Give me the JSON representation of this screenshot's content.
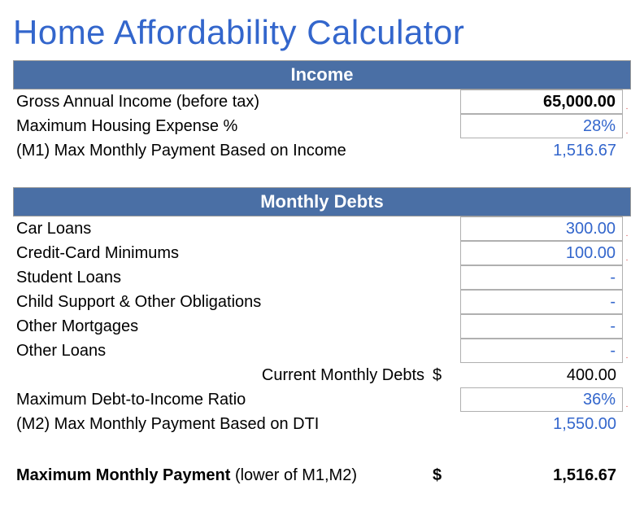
{
  "title": "Home Affordability Calculator",
  "colors": {
    "title": "#3366cc",
    "section_header_bg": "#4a6fa5",
    "section_header_text": "#ffffff",
    "calc_value": "#3366cc",
    "input_border": "#b0b0b0",
    "marker": "#cc3333"
  },
  "fonts": {
    "title_size": 42,
    "header_size": 22,
    "body_size": 20
  },
  "income": {
    "header": "Income",
    "gross_label": "Gross Annual Income (before tax)",
    "gross_value": "65,000.00",
    "max_housing_label": "Maximum Housing Expense %",
    "max_housing_value": "28%",
    "m1_label": "(M1) Max Monthly Payment Based on Income",
    "m1_value": "1,516.67"
  },
  "debts": {
    "header": "Monthly Debts",
    "items": [
      {
        "label": "Car Loans",
        "value": "300.00",
        "marker": true
      },
      {
        "label": "Credit-Card Minimums",
        "value": "100.00",
        "marker": true
      },
      {
        "label": "Student Loans",
        "value": "-",
        "marker": false
      },
      {
        "label": "Child Support & Other Obligations",
        "value": "-",
        "marker": false
      },
      {
        "label": "Other Mortgages",
        "value": "-",
        "marker": false
      },
      {
        "label": "Other Loans",
        "value": "-",
        "marker": true
      }
    ],
    "current_label": "Current Monthly Debts",
    "current_currency": "$",
    "current_value": "400.00",
    "dti_label": "Maximum Debt-to-Income Ratio",
    "dti_value": "36%",
    "m2_label": "(M2) Max Monthly Payment Based on DTI",
    "m2_value": "1,550.00"
  },
  "result": {
    "label_bold": "Maximum Monthly Payment",
    "label_rest": " (lower of M1,M2)",
    "currency": "$",
    "value": "1,516.67"
  }
}
